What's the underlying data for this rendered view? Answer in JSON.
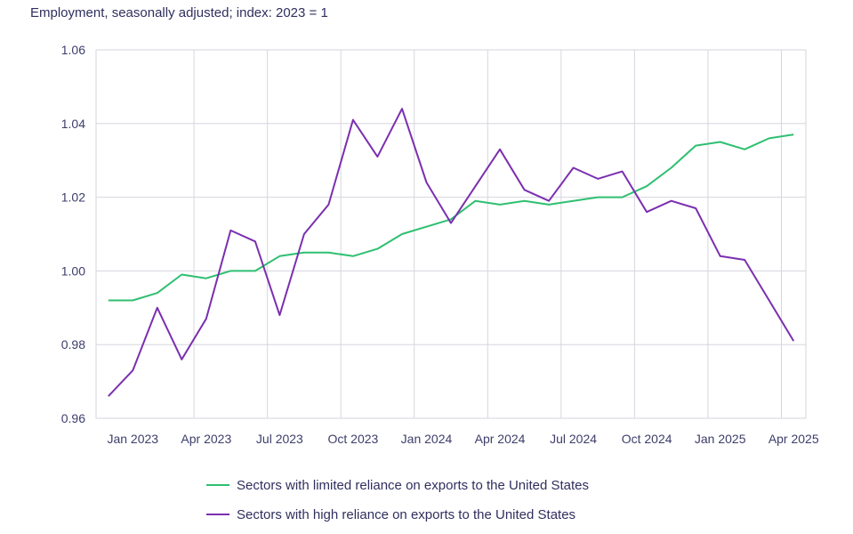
{
  "chart_data": {
    "type": "line",
    "title": "",
    "subtitle": "Employment, seasonally adjusted; index: 2023 = 1",
    "xlabel": "",
    "ylabel": "",
    "ylim": [
      0.96,
      1.06
    ],
    "yticks": [
      "0.96",
      "0.98",
      "1.00",
      "1.02",
      "1.04",
      "1.06"
    ],
    "x": [
      "Dec 2022",
      "Jan 2023",
      "Feb 2023",
      "Mar 2023",
      "Apr 2023",
      "May 2023",
      "Jun 2023",
      "Jul 2023",
      "Aug 2023",
      "Sep 2023",
      "Oct 2023",
      "Nov 2023",
      "Dec 2023",
      "Jan 2024",
      "Feb 2024",
      "Mar 2024",
      "Apr 2024",
      "May 2024",
      "Jun 2024",
      "Jul 2024",
      "Aug 2024",
      "Sep 2024",
      "Oct 2024",
      "Nov 2024",
      "Dec 2024",
      "Jan 2025",
      "Feb 2025",
      "Mar 2025",
      "Apr 2025"
    ],
    "xtick_labels": [
      "Jan 2023",
      "Apr 2023",
      "Jul 2023",
      "Oct 2023",
      "Jan 2024",
      "Apr 2024",
      "Jul 2024",
      "Oct 2024",
      "Jan 2025",
      "Apr 2025"
    ],
    "xtick_indices": [
      1,
      4,
      7,
      10,
      13,
      16,
      19,
      22,
      25,
      28
    ],
    "grid": true,
    "legend_position": "bottom",
    "series": [
      {
        "name": "Sectors with limited reliance on exports to the United States",
        "color": "#2fbf71",
        "values": [
          0.992,
          0.992,
          0.994,
          0.999,
          0.998,
          1.0,
          1.0,
          1.004,
          1.005,
          1.005,
          1.004,
          1.006,
          1.01,
          1.012,
          1.014,
          1.019,
          1.018,
          1.019,
          1.018,
          1.019,
          1.02,
          1.02,
          1.023,
          1.028,
          1.034,
          1.035,
          1.033,
          1.036,
          1.037
        ]
      },
      {
        "name": "Sectors with high reliance on exports to the United States",
        "color": "#7b2fb0",
        "values": [
          0.966,
          0.973,
          0.99,
          0.976,
          0.987,
          1.011,
          1.008,
          0.988,
          1.01,
          1.018,
          1.041,
          1.031,
          1.044,
          1.024,
          1.013,
          1.023,
          1.033,
          1.022,
          1.019,
          1.028,
          1.025,
          1.027,
          1.016,
          1.019,
          1.017,
          1.004,
          1.003,
          0.992,
          0.981
        ]
      }
    ]
  }
}
